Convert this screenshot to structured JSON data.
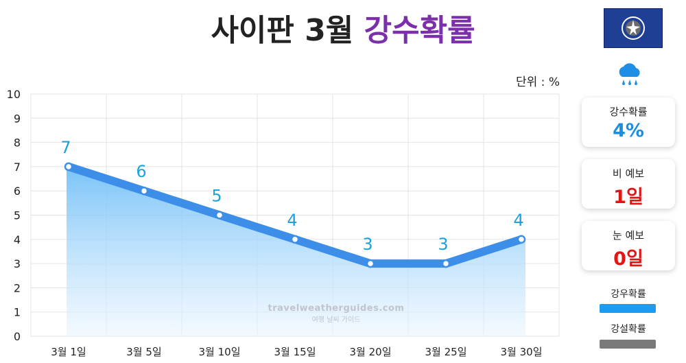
{
  "title": {
    "main": "사이판 3월",
    "highlight": "강수확률"
  },
  "unit": "단위 : %",
  "cards": [
    {
      "label": "강수확률",
      "value": "4%",
      "color": "#1a8fe0"
    },
    {
      "label": "비 예보",
      "value": "1일",
      "color": "#e01515"
    },
    {
      "label": "눈 예보",
      "value": "0일",
      "color": "#e01515"
    }
  ],
  "legend": [
    {
      "label": "강우확률",
      "color": "#1b9cf0"
    },
    {
      "label": "강설확률",
      "color": "#7a7a7a"
    }
  ],
  "watermark": {
    "site": "travelweatherguides.com",
    "sub": "여행 날씨 가이드"
  },
  "chart_data": {
    "type": "area",
    "categories": [
      "3월 1일",
      "3월 5일",
      "3월 10일",
      "3월 15일",
      "3월 20일",
      "3월 25일",
      "3월 30일"
    ],
    "series": [
      {
        "name": "강우확률",
        "values": [
          7,
          6,
          5,
          4,
          3,
          3,
          4
        ]
      }
    ],
    "ylim": [
      0,
      10
    ],
    "yticks": [
      0,
      1,
      2,
      3,
      4,
      5,
      6,
      7,
      8,
      9,
      10
    ],
    "line_color": "#3d8ee8",
    "label_color": "#1aa3d9",
    "grid": true
  }
}
